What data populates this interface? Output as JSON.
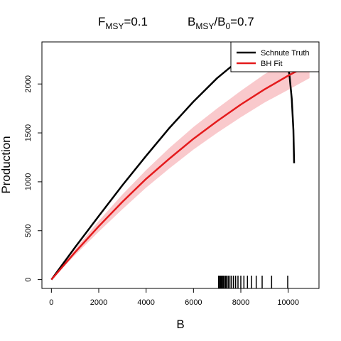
{
  "chart_data": {
    "type": "line",
    "title": {
      "f_base": "F",
      "f_sub": "MSY",
      "f_val": "=0.1",
      "b_base": "B",
      "b_sub": "MSY",
      "b_slash": "/",
      "b0_base": "B",
      "b0_sub": "0",
      "b_val": "=0.7"
    },
    "xlabel": "B",
    "ylabel": "Production",
    "xlim": [
      -400,
      11300
    ],
    "ylim": [
      -90,
      2430
    ],
    "xticks": [
      0,
      2000,
      4000,
      6000,
      8000,
      10000
    ],
    "yticks": [
      0,
      500,
      1000,
      1500,
      2000
    ],
    "xtick_labels": [
      "0",
      "2000",
      "4000",
      "6000",
      "8000",
      "10000"
    ],
    "ytick_labels": [
      "0",
      "500",
      "1000",
      "1500",
      "2000"
    ],
    "legend": {
      "position": "top-right",
      "entries": [
        "Schnute Truth",
        "BH Fit"
      ]
    },
    "colors": {
      "truth": "#000000",
      "fit": "#e41a1c",
      "band": "#f9c9cc"
    },
    "series": [
      {
        "name": "Schnute Truth",
        "x": [
          0,
          1000,
          2000,
          3000,
          4000,
          5000,
          6000,
          7000,
          7800,
          8500,
          9000,
          9400,
          9700,
          9900,
          10050,
          10150,
          10220,
          10250
        ],
        "y": [
          0,
          330,
          650,
          965,
          1265,
          1555,
          1820,
          2060,
          2220,
          2330,
          2390,
          2400,
          2360,
          2260,
          2100,
          1850,
          1530,
          1190
        ]
      },
      {
        "name": "BH Fit",
        "x": [
          0,
          1000,
          2000,
          3000,
          4000,
          5000,
          6000,
          7000,
          8000,
          9000,
          10000,
          10900
        ],
        "y": [
          0,
          280,
          545,
          795,
          1030,
          1240,
          1440,
          1620,
          1790,
          1945,
          2085,
          2200
        ]
      }
    ],
    "band": {
      "x": [
        0,
        1000,
        2000,
        3000,
        4000,
        5000,
        6000,
        7000,
        8000,
        9000,
        10000,
        10900
      ],
      "lower": [
        0,
        250,
        490,
        720,
        940,
        1140,
        1330,
        1500,
        1660,
        1810,
        1940,
        2060
      ],
      "upper": [
        0,
        310,
        600,
        870,
        1120,
        1350,
        1560,
        1750,
        1930,
        2100,
        2240,
        2360
      ]
    },
    "rug_x": [
      7060,
      7100,
      7140,
      7180,
      7220,
      7260,
      7310,
      7360,
      7410,
      7470,
      7540,
      7610,
      7690,
      7780,
      7880,
      8000,
      8130,
      8280,
      8450,
      8650,
      8900,
      9300,
      9980
    ]
  }
}
